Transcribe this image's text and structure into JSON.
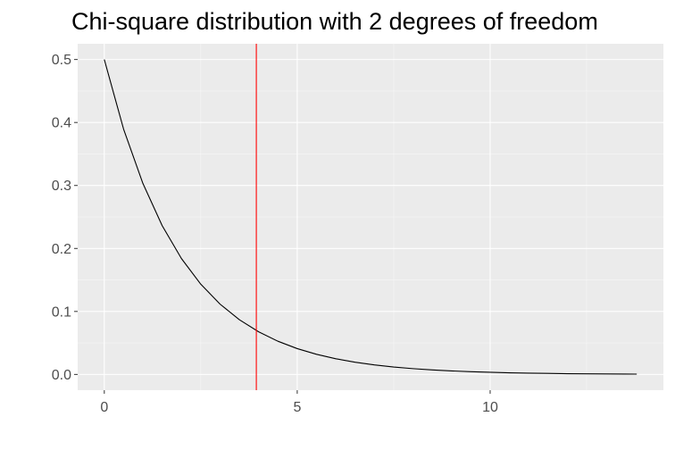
{
  "chart_data": {
    "type": "line",
    "title": "Chi-square distribution with 2 degrees of freedom",
    "xlabel": "",
    "ylabel": "",
    "xlim": [
      -0.69,
      14.49
    ],
    "ylim": [
      -0.025,
      0.525
    ],
    "x_ticks": [
      0,
      5,
      10
    ],
    "x_tick_labels": [
      "0",
      "5",
      "10"
    ],
    "y_ticks": [
      0.0,
      0.1,
      0.2,
      0.3,
      0.4,
      0.5
    ],
    "y_tick_labels": [
      "0.0",
      "0.1",
      "0.2",
      "0.3",
      "0.4",
      "0.5"
    ],
    "grid": true,
    "series": [
      {
        "color": "#000000",
        "x": [
          0,
          0.5,
          1,
          1.5,
          2,
          2.5,
          3,
          3.5,
          4,
          4.5,
          5,
          5.5,
          6,
          6.5,
          7,
          7.5,
          8,
          8.5,
          9,
          9.5,
          10,
          10.5,
          11,
          11.5,
          12,
          12.5,
          13,
          13.5,
          13.8
        ],
        "values": [
          0.5,
          0.3894,
          0.3033,
          0.2362,
          0.1839,
          0.1433,
          0.1116,
          0.0869,
          0.0677,
          0.0527,
          0.041,
          0.032,
          0.0249,
          0.0194,
          0.0151,
          0.0118,
          0.0092,
          0.0071,
          0.0056,
          0.0043,
          0.0034,
          0.0026,
          0.002,
          0.0016,
          0.0012,
          0.001,
          0.0008,
          0.0006,
          0.0005
        ]
      }
    ],
    "vline": {
      "x": 3.94,
      "color": "#ff0000"
    },
    "panel_color": "#ebebeb",
    "grid_color": "#ffffff"
  }
}
